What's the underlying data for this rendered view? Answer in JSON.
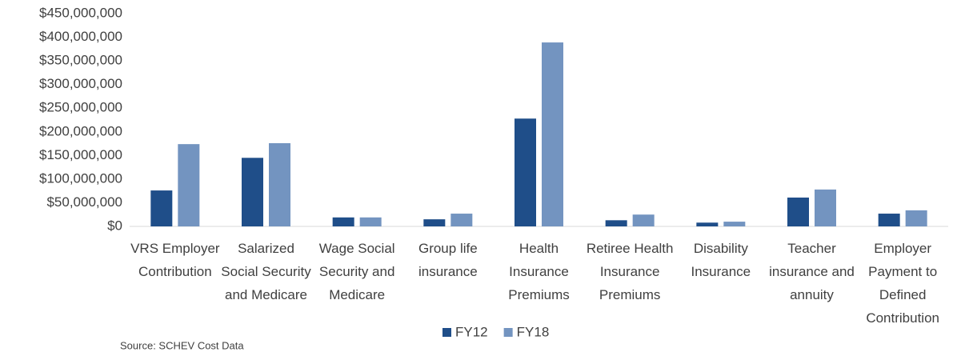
{
  "chart_data": {
    "type": "bar",
    "categories": [
      "VRS Employer Contribution",
      "Salarized Social Security and Medicare",
      "Wage Social Security and Medicare",
      "Group life insurance",
      "Health Insurance Premiums",
      "Retiree Health Insurance Premiums",
      "Disability Insurance",
      "Teacher insurance and annuity",
      "Employer Payment to Defined Contribution"
    ],
    "series": [
      {
        "name": "FY12",
        "color": "#1f4e89",
        "values": [
          76000000,
          145000000,
          19000000,
          15000000,
          228000000,
          13000000,
          8000000,
          61000000,
          27000000
        ]
      },
      {
        "name": "FY18",
        "color": "#7394c0",
        "values": [
          174000000,
          176000000,
          19000000,
          27000000,
          389000000,
          25000000,
          10000000,
          78000000,
          34000000
        ]
      }
    ],
    "ylim": [
      0,
      450000000
    ],
    "yticks": [
      {
        "value": 0,
        "label": "$0"
      },
      {
        "value": 50000000,
        "label": "$50,000,000"
      },
      {
        "value": 100000000,
        "label": "$100,000,000"
      },
      {
        "value": 150000000,
        "label": "$150,000,000"
      },
      {
        "value": 200000000,
        "label": "$200,000,000"
      },
      {
        "value": 250000000,
        "label": "$250,000,000"
      },
      {
        "value": 300000000,
        "label": "$300,000,000"
      },
      {
        "value": 350000000,
        "label": "$350,000,000"
      },
      {
        "value": 400000000,
        "label": "$400,000,000"
      },
      {
        "value": 450000000,
        "label": "$450,000,000"
      }
    ],
    "grid": false,
    "legend": "bottom",
    "source": "Source: SCHEV Cost Data"
  }
}
